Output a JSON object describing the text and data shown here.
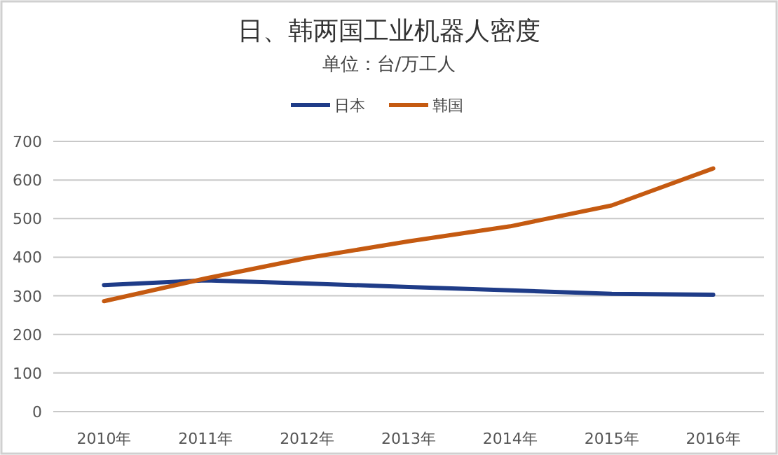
{
  "chart_data": {
    "type": "line",
    "title": "日、韩两国工业机器人密度",
    "subtitle": "单位：台/万工人",
    "categories": [
      "2010年",
      "2011年",
      "2012年",
      "2013年",
      "2014年",
      "2015年",
      "2016年"
    ],
    "series": [
      {
        "name": "日本",
        "color": "#1f3c88",
        "values": [
          328,
          340,
          332,
          323,
          314,
          305,
          303
        ]
      },
      {
        "name": "韩国",
        "color": "#c55a11",
        "values": [
          286,
          345,
          398,
          441,
          480,
          534,
          630
        ]
      }
    ],
    "ylim": [
      0,
      700
    ],
    "yticks": [
      0,
      100,
      200,
      300,
      400,
      500,
      600,
      700
    ],
    "grid": "y",
    "legend": "top",
    "line_style": "solid"
  }
}
